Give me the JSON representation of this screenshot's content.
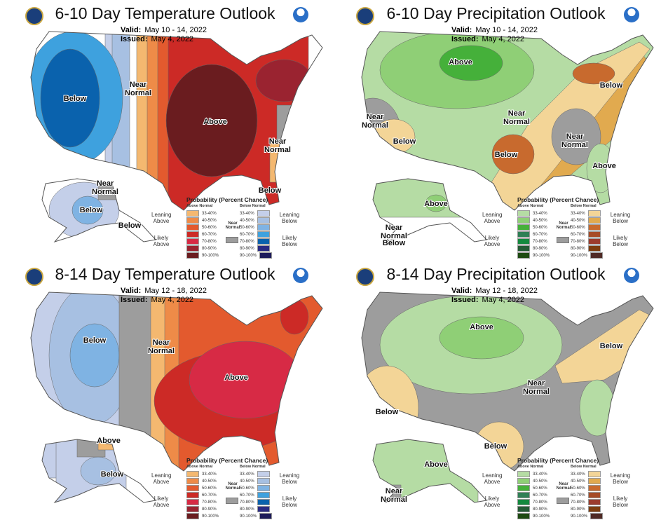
{
  "colors": {
    "temp_above": [
      "#f4b870",
      "#ee8b48",
      "#e35a2e",
      "#cc2a26",
      "#d72a45",
      "#9a2330",
      "#6a1c1f"
    ],
    "temp_below": [
      "#c4cfe9",
      "#a7c0e2",
      "#7fb3e3",
      "#3ea1de",
      "#0a62ad",
      "#2a2a82",
      "#1d1b5a"
    ],
    "precip_above": [
      "#b5dca4",
      "#8fcf76",
      "#45b03a",
      "#2f7f55",
      "#14893e",
      "#255a35",
      "#1e4a12"
    ],
    "precip_below": [
      "#f3d597",
      "#e1aa4f",
      "#c86a2e",
      "#a64b27",
      "#9c3c2d",
      "#7d3d0f",
      "#4f2a25"
    ],
    "near_normal": "#9d9d9d"
  },
  "icons": [
    "doc-seal-icon",
    "noaa-logo-icon"
  ],
  "legend": {
    "title": "Probability (Percent Chance)",
    "above_header": "Above Normal",
    "below_header": "Below Normal",
    "ranges": [
      "33-40%",
      "40-50%",
      "50-60%",
      "60-70%",
      "70-80%",
      "80-90%",
      "90-100%"
    ],
    "near_normal": "Near Normal",
    "leaning_above": "Leaning Above",
    "likely_above": "Likely Above",
    "leaning_below": "Leaning Below",
    "likely_below": "Likely Below"
  },
  "panels": [
    {
      "title": "6-10 Day Temperature Outlook",
      "valid_label": "Valid:",
      "valid": "May 10 - 14, 2022",
      "issued_label": "Issued:",
      "issued": "May 4, 2022",
      "kind": "temp",
      "labels": [
        "Below",
        "Near Normal",
        "Above",
        "Near Normal",
        "Near Normal",
        "Below",
        "Below",
        "Below"
      ]
    },
    {
      "title": "6-10 Day Precipitation Outlook",
      "valid_label": "Valid:",
      "valid": "May 10 - 14, 2022",
      "issued_label": "Issued:",
      "issued": "May 4, 2022",
      "kind": "precip",
      "labels": [
        "Above",
        "Below",
        "Near Normal",
        "Near Normal",
        "Below",
        "Below",
        "Near Normal",
        "Above",
        "Above",
        "Near Normal",
        "Below"
      ]
    },
    {
      "title": "8-14 Day Temperature Outlook",
      "valid_label": "Valid:",
      "valid": "May 12 - 18, 2022",
      "issued_label": "Issued:",
      "issued": "May 4, 2022",
      "kind": "temp",
      "labels": [
        "Below",
        "Near Normal",
        "Above",
        "Above",
        "Below"
      ]
    },
    {
      "title": "8-14 Day Precipitation Outlook",
      "valid_label": "Valid:",
      "valid": "May 12 - 18, 2022",
      "issued_label": "Issued:",
      "issued": "May 4, 2022",
      "kind": "precip",
      "labels": [
        "Above",
        "Below",
        "Below",
        "Near Normal",
        "Below",
        "Above",
        "Near Normal"
      ]
    }
  ]
}
